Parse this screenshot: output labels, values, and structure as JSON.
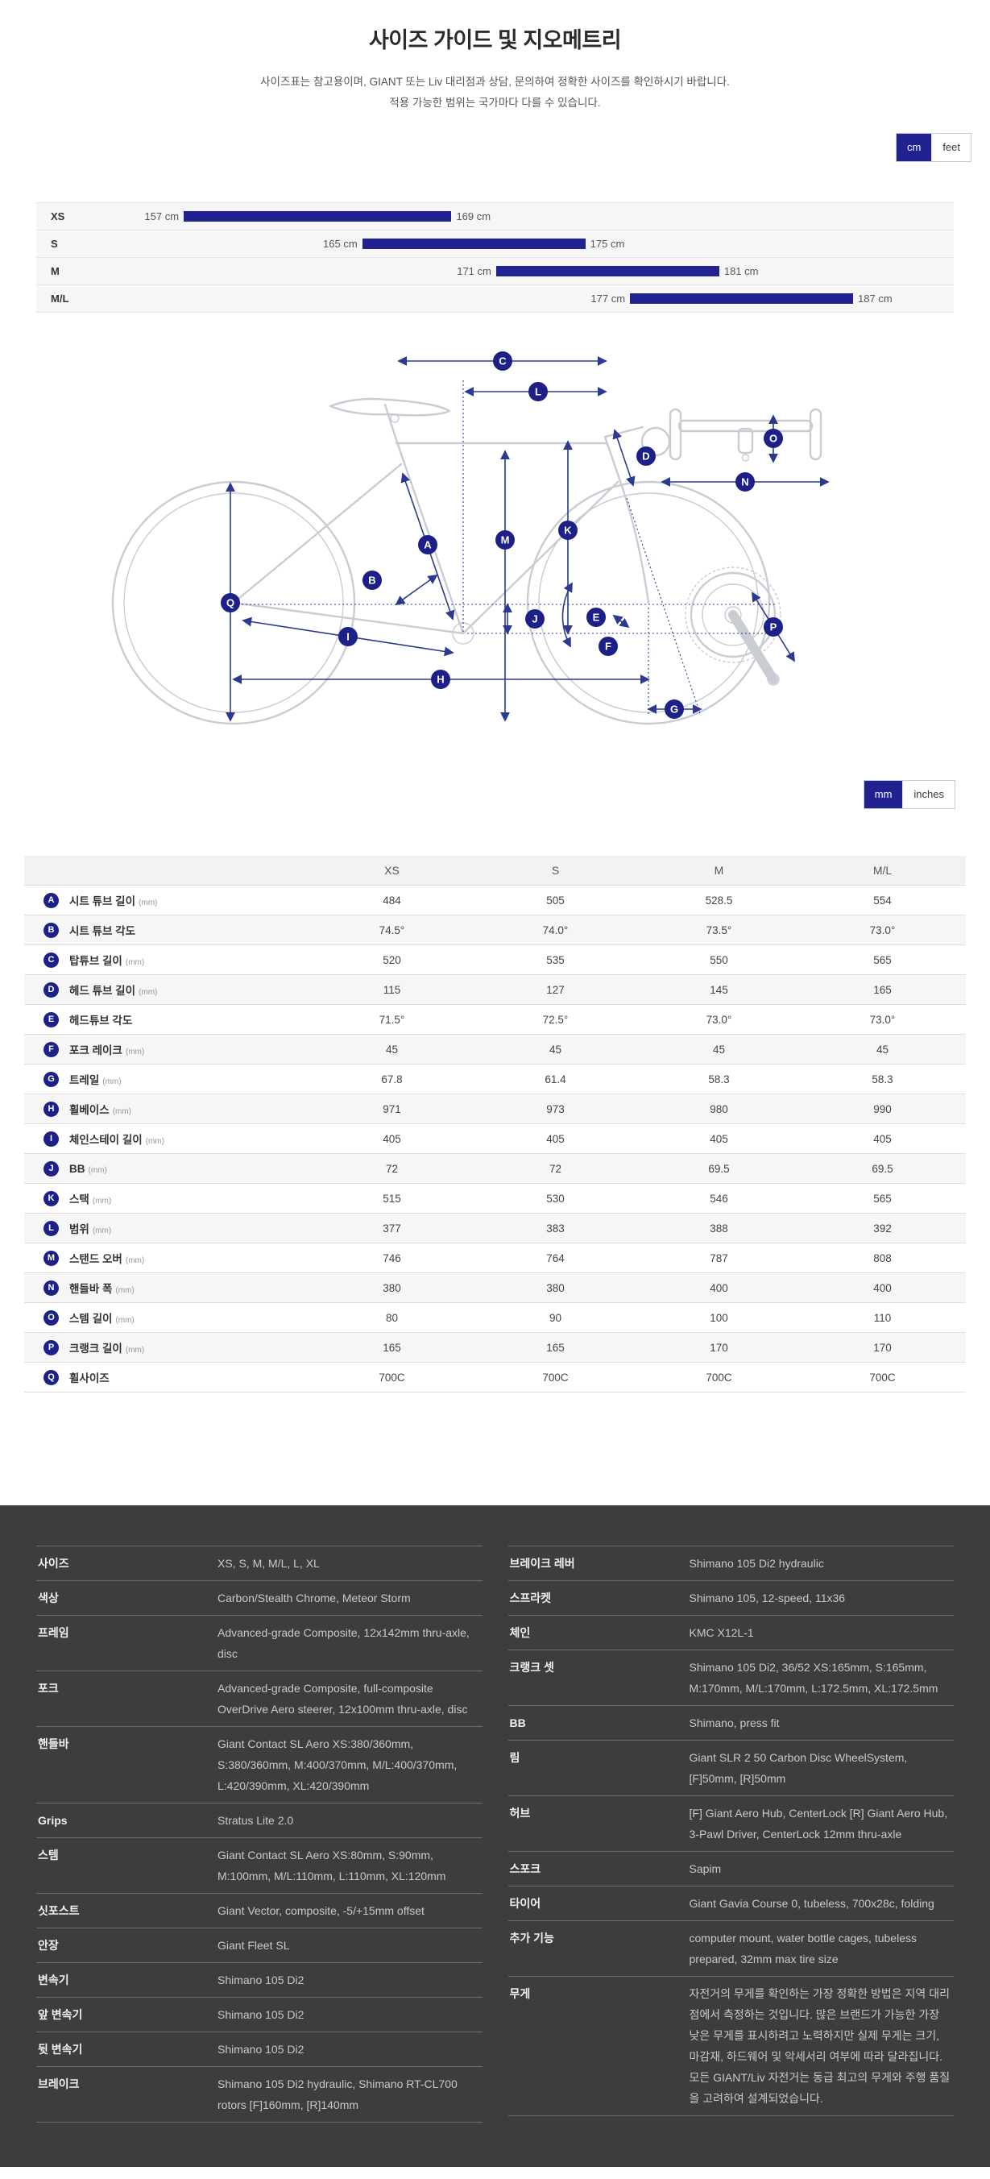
{
  "page": {
    "title": "사이즈 가이드 및 지오메트리",
    "subtitle_line1": "사이즈표는 참고용이며, GIANT 또는 Liv 대리점과 상담, 문의하여 정확한 사이즈를 확인하시기 바랍니다.",
    "subtitle_line2": "적용 가능한 범위는 국가마다 다를 수 있습니다."
  },
  "unit_toggles": {
    "height": {
      "option1": "cm",
      "option2": "feet",
      "selected": "cm"
    },
    "dimension": {
      "option1": "mm",
      "option2": "inches",
      "selected": "mm"
    }
  },
  "size_guide": {
    "unit": "cm",
    "rows": [
      {
        "label": "XS",
        "min": 157,
        "max": 169
      },
      {
        "label": "S",
        "min": 165,
        "max": 175
      },
      {
        "label": "M",
        "min": 171,
        "max": 181
      },
      {
        "label": "M/L",
        "min": 177,
        "max": 187
      }
    ],
    "scale": {
      "origin_cm": 157,
      "origin_pct": 16.07,
      "pct_per_cm": 2.432
    }
  },
  "diagram": {
    "badges": [
      "A",
      "B",
      "C",
      "D",
      "E",
      "F",
      "G",
      "H",
      "I",
      "J",
      "K",
      "L",
      "M",
      "N",
      "O",
      "P",
      "Q"
    ]
  },
  "geometry_table": {
    "columns": [
      "XS",
      "S",
      "M",
      "M/L"
    ],
    "rows": [
      {
        "letter": "A",
        "label": "시트 튜브 길이",
        "unit": "(mm)",
        "values": [
          "484",
          "505",
          "528.5",
          "554"
        ]
      },
      {
        "letter": "B",
        "label": "시트 튜브 각도",
        "unit": "",
        "values": [
          "74.5°",
          "74.0°",
          "73.5°",
          "73.0°"
        ]
      },
      {
        "letter": "C",
        "label": "탑튜브 길이",
        "unit": "(mm)",
        "values": [
          "520",
          "535",
          "550",
          "565"
        ]
      },
      {
        "letter": "D",
        "label": "헤드 튜브 길이",
        "unit": "(mm)",
        "values": [
          "115",
          "127",
          "145",
          "165"
        ]
      },
      {
        "letter": "E",
        "label": "헤드튜브 각도",
        "unit": "",
        "values": [
          "71.5°",
          "72.5°",
          "73.0°",
          "73.0°"
        ]
      },
      {
        "letter": "F",
        "label": "포크 레이크",
        "unit": "(mm)",
        "values": [
          "45",
          "45",
          "45",
          "45"
        ]
      },
      {
        "letter": "G",
        "label": "트레일",
        "unit": "(mm)",
        "values": [
          "67.8",
          "61.4",
          "58.3",
          "58.3"
        ]
      },
      {
        "letter": "H",
        "label": "휠베이스",
        "unit": "(mm)",
        "values": [
          "971",
          "973",
          "980",
          "990"
        ]
      },
      {
        "letter": "I",
        "label": "체인스테이 길이",
        "unit": "(mm)",
        "values": [
          "405",
          "405",
          "405",
          "405"
        ]
      },
      {
        "letter": "J",
        "label": "BB",
        "unit": "(mm)",
        "values": [
          "72",
          "72",
          "69.5",
          "69.5"
        ]
      },
      {
        "letter": "K",
        "label": "스택",
        "unit": "(mm)",
        "values": [
          "515",
          "530",
          "546",
          "565"
        ]
      },
      {
        "letter": "L",
        "label": "범위",
        "unit": "(mm)",
        "values": [
          "377",
          "383",
          "388",
          "392"
        ]
      },
      {
        "letter": "M",
        "label": "스탠드 오버",
        "unit": "(mm)",
        "values": [
          "746",
          "764",
          "787",
          "808"
        ]
      },
      {
        "letter": "N",
        "label": "핸들바 폭",
        "unit": "(mm)",
        "values": [
          "380",
          "380",
          "400",
          "400"
        ]
      },
      {
        "letter": "O",
        "label": "스템 길이",
        "unit": "(mm)",
        "values": [
          "80",
          "90",
          "100",
          "110"
        ]
      },
      {
        "letter": "P",
        "label": "크랭크 길이",
        "unit": "(mm)",
        "values": [
          "165",
          "165",
          "170",
          "170"
        ]
      },
      {
        "letter": "Q",
        "label": "휠사이즈",
        "unit": "",
        "values": [
          "700C",
          "700C",
          "700C",
          "700C"
        ]
      }
    ]
  },
  "specs": {
    "left": [
      {
        "label": "사이즈",
        "value": "XS, S, M, M/L, L, XL"
      },
      {
        "label": "색상",
        "value": "Carbon/Stealth Chrome, Meteor Storm"
      },
      {
        "label": "프레임",
        "value": "Advanced-grade Composite, 12x142mm thru-axle, disc"
      },
      {
        "label": "포크",
        "value": "Advanced-grade Composite, full-composite OverDrive Aero steerer, 12x100mm thru-axle, disc"
      },
      {
        "label": "핸들바",
        "value": "Giant Contact SL Aero XS:380/360mm, S:380/360mm, M:400/370mm, M/L:400/370mm, L:420/390mm, XL:420/390mm"
      },
      {
        "label": "Grips",
        "value": "Stratus Lite 2.0"
      },
      {
        "label": "스템",
        "value": "Giant Contact SL Aero XS:80mm, S:90mm, M:100mm, M/L:110mm, L:110mm, XL:120mm"
      },
      {
        "label": "싯포스트",
        "value": "Giant Vector, composite, -5/+15mm offset"
      },
      {
        "label": "안장",
        "value": "Giant Fleet SL"
      },
      {
        "label": "변속기",
        "value": "Shimano 105 Di2"
      },
      {
        "label": "앞 변속기",
        "value": "Shimano 105 Di2"
      },
      {
        "label": "뒷 변속기",
        "value": "Shimano 105 Di2"
      },
      {
        "label": "브레이크",
        "value": "Shimano 105 Di2 hydraulic, Shimano RT-CL700 rotors [F]160mm, [R]140mm"
      }
    ],
    "right": [
      {
        "label": "브레이크 레버",
        "value": "Shimano 105 Di2 hydraulic"
      },
      {
        "label": "스프라켓",
        "value": "Shimano 105, 12-speed, 11x36"
      },
      {
        "label": "체인",
        "value": "KMC X12L-1"
      },
      {
        "label": "크랭크 셋",
        "value": "Shimano 105 Di2, 36/52 XS:165mm, S:165mm, M:170mm, M/L:170mm, L:172.5mm, XL:172.5mm"
      },
      {
        "label": "BB",
        "value": "Shimano, press fit"
      },
      {
        "label": "림",
        "value": "Giant SLR 2 50 Carbon Disc WheelSystem, [F]50mm, [R]50mm"
      },
      {
        "label": "허브",
        "value": "[F] Giant Aero Hub, CenterLock [R] Giant Aero Hub, 3-Pawl Driver, CenterLock 12mm thru-axle"
      },
      {
        "label": "스포크",
        "value": "Sapim"
      },
      {
        "label": "타이어",
        "value": "Giant Gavia Course 0, tubeless, 700x28c, folding"
      },
      {
        "label": "추가 기능",
        "value": "computer mount, water bottle cages, tubeless prepared, 32mm max tire size"
      },
      {
        "label": "무게",
        "value": "자전거의 무게를 확인하는 가장 정확한 방법은 지역 대리점에서 측정하는 것입니다. 많은 브랜드가 가능한 가장 낮은 무게를 표시하려고 노력하지만 실제 무게는 크기, 마감재, 하드웨어 및 악세서리 여부에 따라 달라집니다. 모든 GIANT/Liv 자전거는 동급 최고의 무게와 주행 품질을 고려하여 설계되었습니다."
      }
    ]
  },
  "colors": {
    "accent_navy": "#21218f",
    "diagram_line": "#2b3990",
    "badge_navy": "#1d2088",
    "dark_section_bg": "#3d3d3f",
    "row_alt": "#f6f6f7"
  }
}
